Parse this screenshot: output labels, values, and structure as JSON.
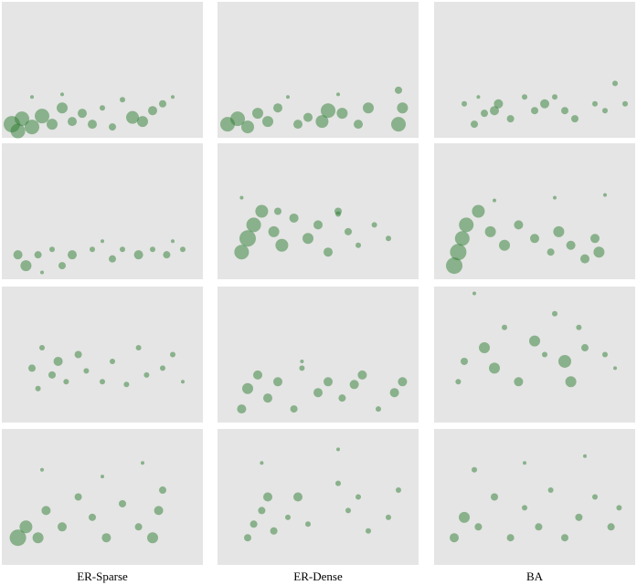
{
  "columns": [
    "ER-Sparse",
    "ER-Dense",
    "BA"
  ],
  "chart_data": [
    {
      "type": "scatter",
      "color": "#2e7d32",
      "xlim": [
        0,
        100
      ],
      "ylim": [
        0,
        100
      ],
      "x": [
        5,
        10,
        15,
        20,
        25,
        30,
        35,
        40,
        45,
        65,
        70,
        75,
        80,
        15,
        30,
        60,
        8,
        50,
        55,
        85
      ],
      "y": [
        10,
        14,
        8,
        16,
        10,
        22,
        12,
        18,
        10,
        15,
        12,
        20,
        25,
        30,
        32,
        28,
        5,
        22,
        8,
        30
      ],
      "sizes": [
        9,
        8,
        8,
        8,
        6,
        6,
        5,
        5,
        5,
        7,
        6,
        5,
        4,
        2,
        2,
        3,
        8,
        3,
        4,
        2
      ]
    },
    {
      "type": "scatter",
      "color": "#2e7d32",
      "xlim": [
        0,
        100
      ],
      "ylim": [
        0,
        100
      ],
      "x": [
        5,
        10,
        15,
        20,
        25,
        30,
        40,
        45,
        52,
        55,
        62,
        70,
        75,
        90,
        92,
        35,
        60,
        90
      ],
      "y": [
        10,
        14,
        8,
        18,
        12,
        22,
        10,
        15,
        12,
        20,
        18,
        10,
        22,
        10,
        22,
        30,
        32,
        35
      ],
      "sizes": [
        8,
        8,
        7,
        6,
        6,
        5,
        5,
        5,
        7,
        8,
        6,
        5,
        6,
        8,
        6,
        2,
        2,
        4
      ]
    },
    {
      "type": "scatter",
      "color": "#2e7d32",
      "xlim": [
        0,
        100
      ],
      "ylim": [
        0,
        100
      ],
      "x": [
        15,
        20,
        25,
        30,
        32,
        38,
        45,
        50,
        55,
        60,
        65,
        70,
        80,
        85,
        95,
        22,
        90
      ],
      "y": [
        25,
        10,
        18,
        20,
        25,
        14,
        30,
        20,
        25,
        30,
        20,
        14,
        25,
        20,
        25,
        30,
        40
      ],
      "sizes": [
        3,
        4,
        4,
        5,
        5,
        4,
        3,
        4,
        5,
        3,
        4,
        4,
        3,
        3,
        3,
        2,
        3
      ]
    },
    {
      "type": "scatter",
      "color": "#2e7d32",
      "xlim": [
        0,
        100
      ],
      "ylim": [
        0,
        100
      ],
      "x": [
        8,
        12,
        18,
        25,
        30,
        35,
        45,
        55,
        60,
        68,
        75,
        82,
        90,
        20,
        50,
        85
      ],
      "y": [
        18,
        10,
        18,
        22,
        10,
        18,
        22,
        15,
        22,
        18,
        22,
        18,
        22,
        5,
        28,
        28
      ],
      "sizes": [
        5,
        6,
        4,
        3,
        4,
        5,
        3,
        4,
        3,
        5,
        3,
        4,
        3,
        2,
        2,
        2
      ]
    },
    {
      "type": "scatter",
      "color": "#2e7d32",
      "xlim": [
        0,
        100
      ],
      "ylim": [
        0,
        100
      ],
      "x": [
        12,
        15,
        18,
        22,
        28,
        32,
        38,
        45,
        50,
        55,
        60,
        65,
        70,
        78,
        85,
        12,
        30,
        60
      ],
      "y": [
        20,
        30,
        40,
        50,
        35,
        25,
        45,
        30,
        40,
        20,
        50,
        35,
        25,
        40,
        30,
        60,
        50,
        48
      ],
      "sizes": [
        8,
        9,
        8,
        7,
        6,
        7,
        5,
        6,
        5,
        5,
        4,
        4,
        3,
        3,
        3,
        2,
        4,
        3
      ]
    },
    {
      "type": "scatter",
      "color": "#2e7d32",
      "xlim": [
        0,
        100
      ],
      "ylim": [
        0,
        100
      ],
      "x": [
        10,
        12,
        14,
        16,
        22,
        28,
        35,
        42,
        50,
        58,
        62,
        68,
        75,
        80,
        82,
        60,
        30,
        85
      ],
      "y": [
        10,
        20,
        30,
        40,
        50,
        35,
        25,
        40,
        30,
        20,
        35,
        25,
        15,
        30,
        20,
        60,
        58,
        62
      ],
      "sizes": [
        9,
        9,
        8,
        8,
        7,
        6,
        6,
        5,
        5,
        4,
        6,
        5,
        5,
        5,
        6,
        2,
        2,
        2
      ]
    },
    {
      "type": "scatter",
      "color": "#2e7d32",
      "xlim": [
        0,
        100
      ],
      "ylim": [
        0,
        100
      ],
      "x": [
        15,
        18,
        20,
        25,
        28,
        32,
        38,
        42,
        50,
        55,
        62,
        68,
        72,
        80,
        85,
        90
      ],
      "y": [
        40,
        25,
        55,
        35,
        45,
        30,
        50,
        38,
        30,
        45,
        28,
        55,
        35,
        40,
        50,
        30
      ],
      "sizes": [
        4,
        3,
        3,
        4,
        5,
        3,
        4,
        3,
        3,
        3,
        3,
        3,
        3,
        3,
        3,
        2
      ]
    },
    {
      "type": "scatter",
      "color": "#2e7d32",
      "xlim": [
        0,
        100
      ],
      "ylim": [
        0,
        100
      ],
      "x": [
        12,
        15,
        20,
        25,
        30,
        38,
        42,
        50,
        55,
        62,
        68,
        72,
        80,
        88,
        92,
        42
      ],
      "y": [
        10,
        25,
        35,
        18,
        30,
        10,
        40,
        22,
        30,
        18,
        28,
        35,
        10,
        22,
        30,
        45
      ],
      "sizes": [
        5,
        6,
        5,
        5,
        5,
        4,
        3,
        5,
        5,
        4,
        5,
        5,
        3,
        5,
        5,
        2
      ]
    },
    {
      "type": "scatter",
      "color": "#2e7d32",
      "xlim": [
        0,
        100
      ],
      "ylim": [
        0,
        100
      ],
      "x": [
        12,
        15,
        25,
        30,
        35,
        42,
        50,
        55,
        60,
        65,
        68,
        72,
        75,
        85,
        90,
        20
      ],
      "y": [
        30,
        45,
        55,
        40,
        70,
        30,
        60,
        50,
        80,
        45,
        30,
        70,
        55,
        50,
        40,
        95
      ],
      "sizes": [
        3,
        4,
        6,
        6,
        3,
        5,
        6,
        3,
        3,
        7,
        6,
        3,
        4,
        3,
        2,
        2
      ]
    },
    {
      "type": "scatter",
      "color": "#2e7d32",
      "xlim": [
        0,
        100
      ],
      "ylim": [
        0,
        100
      ],
      "x": [
        8,
        12,
        18,
        22,
        30,
        38,
        45,
        52,
        60,
        68,
        75,
        78,
        80,
        20,
        50,
        70
      ],
      "y": [
        20,
        28,
        20,
        40,
        28,
        50,
        35,
        20,
        45,
        28,
        20,
        40,
        55,
        70,
        65,
        75
      ],
      "sizes": [
        9,
        7,
        6,
        5,
        5,
        4,
        4,
        5,
        4,
        4,
        6,
        5,
        4,
        2,
        2,
        2
      ]
    },
    {
      "type": "scatter",
      "color": "#2e7d32",
      "xlim": [
        0,
        100
      ],
      "ylim": [
        0,
        100
      ],
      "x": [
        15,
        18,
        22,
        25,
        28,
        35,
        40,
        45,
        60,
        65,
        70,
        75,
        85,
        90,
        22,
        60
      ],
      "y": [
        20,
        30,
        40,
        50,
        25,
        35,
        50,
        30,
        60,
        40,
        50,
        25,
        35,
        55,
        75,
        85
      ],
      "sizes": [
        4,
        4,
        4,
        5,
        4,
        3,
        5,
        3,
        3,
        3,
        3,
        3,
        3,
        3,
        2,
        2
      ]
    },
    {
      "type": "scatter",
      "color": "#2e7d32",
      "xlim": [
        0,
        100
      ],
      "ylim": [
        0,
        100
      ],
      "x": [
        10,
        15,
        22,
        30,
        38,
        45,
        52,
        58,
        65,
        72,
        80,
        88,
        92,
        20,
        45,
        75
      ],
      "y": [
        20,
        35,
        28,
        50,
        20,
        42,
        28,
        55,
        20,
        35,
        50,
        28,
        42,
        70,
        75,
        80
      ],
      "sizes": [
        5,
        6,
        4,
        4,
        4,
        3,
        4,
        3,
        4,
        4,
        3,
        4,
        3,
        3,
        2,
        2
      ]
    }
  ]
}
